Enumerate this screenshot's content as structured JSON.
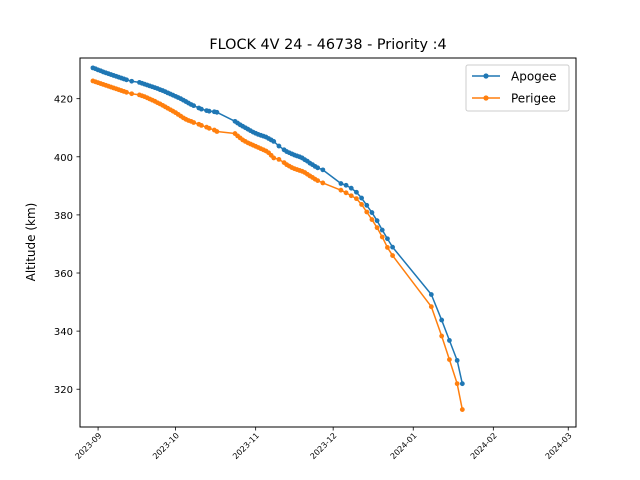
{
  "chart_data": {
    "type": "line",
    "title": "FLOCK 4V 24 - 46738 - Priority :4",
    "xlabel": "",
    "ylabel": "Altitude (km)",
    "xlim": [
      "2023-08-25",
      "2024-03-04"
    ],
    "ylim": [
      307,
      434
    ],
    "x_ticks": [
      "2023-09",
      "2023-10",
      "2023-11",
      "2023-12",
      "2024-01",
      "2024-02",
      "2024-03"
    ],
    "y_ticks": [
      320,
      340,
      360,
      380,
      400,
      420
    ],
    "grid": false,
    "legend_position": "top-right",
    "series": [
      {
        "name": "Apogee",
        "color": "#1f77b4",
        "points": [
          [
            "2023-08-30",
            430.6
          ],
          [
            "2023-08-31",
            430.3
          ],
          [
            "2023-09-01",
            429.9
          ],
          [
            "2023-09-02",
            429.6
          ],
          [
            "2023-09-03",
            429.2
          ],
          [
            "2023-09-04",
            428.9
          ],
          [
            "2023-09-05",
            428.6
          ],
          [
            "2023-09-06",
            428.3
          ],
          [
            "2023-09-07",
            428.0
          ],
          [
            "2023-09-08",
            427.7
          ],
          [
            "2023-09-09",
            427.4
          ],
          [
            "2023-09-10",
            427.1
          ],
          [
            "2023-09-11",
            426.8
          ],
          [
            "2023-09-12",
            426.5
          ],
          [
            "2023-09-14",
            426.0
          ],
          [
            "2023-09-17",
            425.6
          ],
          [
            "2023-09-18",
            425.3
          ],
          [
            "2023-09-19",
            425.0
          ],
          [
            "2023-09-20",
            424.7
          ],
          [
            "2023-09-21",
            424.4
          ],
          [
            "2023-09-22",
            424.1
          ],
          [
            "2023-09-23",
            423.8
          ],
          [
            "2023-09-24",
            423.5
          ],
          [
            "2023-09-25",
            423.1
          ],
          [
            "2023-09-26",
            422.8
          ],
          [
            "2023-09-27",
            422.4
          ],
          [
            "2023-09-28",
            422.0
          ],
          [
            "2023-09-29",
            421.6
          ],
          [
            "2023-09-30",
            421.2
          ],
          [
            "2023-10-01",
            420.8
          ],
          [
            "2023-10-02",
            420.4
          ],
          [
            "2023-10-03",
            420.0
          ],
          [
            "2023-10-04",
            419.5
          ],
          [
            "2023-10-05",
            419.0
          ],
          [
            "2023-10-06",
            418.5
          ],
          [
            "2023-10-07",
            418.0
          ],
          [
            "2023-10-08",
            417.6
          ],
          [
            "2023-10-10",
            416.8
          ],
          [
            "2023-10-11",
            416.4
          ],
          [
            "2023-10-13",
            415.9
          ],
          [
            "2023-10-14",
            415.7
          ],
          [
            "2023-10-16",
            415.5
          ],
          [
            "2023-10-17",
            415.3
          ],
          [
            "2023-10-24",
            412.2
          ],
          [
            "2023-10-25",
            411.6
          ],
          [
            "2023-10-26",
            411.0
          ],
          [
            "2023-10-27",
            410.5
          ],
          [
            "2023-10-28",
            410.0
          ],
          [
            "2023-10-29",
            409.5
          ],
          [
            "2023-10-30",
            409.0
          ],
          [
            "2023-10-31",
            408.5
          ],
          [
            "2023-11-01",
            408.1
          ],
          [
            "2023-11-02",
            407.7
          ],
          [
            "2023-11-03",
            407.4
          ],
          [
            "2023-11-04",
            407.1
          ],
          [
            "2023-11-05",
            406.8
          ],
          [
            "2023-11-06",
            406.3
          ],
          [
            "2023-11-07",
            405.8
          ],
          [
            "2023-11-08",
            405.3
          ],
          [
            "2023-11-10",
            403.7
          ],
          [
            "2023-11-12",
            402.4
          ],
          [
            "2023-11-13",
            401.8
          ],
          [
            "2023-11-14",
            401.4
          ],
          [
            "2023-11-15",
            401.0
          ],
          [
            "2023-11-16",
            400.6
          ],
          [
            "2023-11-17",
            400.3
          ],
          [
            "2023-11-18",
            400.0
          ],
          [
            "2023-11-19",
            399.6
          ],
          [
            "2023-11-20",
            399.0
          ],
          [
            "2023-11-21",
            398.5
          ],
          [
            "2023-11-22",
            397.8
          ],
          [
            "2023-11-23",
            397.3
          ],
          [
            "2023-11-24",
            396.7
          ],
          [
            "2023-11-25",
            396.2
          ],
          [
            "2023-11-27",
            395.5
          ],
          [
            "2023-12-04",
            390.8
          ],
          [
            "2023-12-06",
            390.2
          ],
          [
            "2023-12-08",
            389.2
          ],
          [
            "2023-12-10",
            387.8
          ],
          [
            "2023-12-12",
            385.8
          ],
          [
            "2023-12-14",
            383.3
          ],
          [
            "2023-12-16",
            380.8
          ],
          [
            "2023-12-18",
            378.0
          ],
          [
            "2023-12-20",
            374.8
          ],
          [
            "2023-12-22",
            371.8
          ],
          [
            "2023-12-24",
            368.9
          ],
          [
            "2024-01-08",
            352.6
          ],
          [
            "2024-01-12",
            343.8
          ],
          [
            "2024-01-15",
            336.8
          ],
          [
            "2024-01-18",
            329.9
          ],
          [
            "2024-01-20",
            321.9
          ]
        ]
      },
      {
        "name": "Perigee",
        "color": "#ff7f0e",
        "points": [
          [
            "2023-08-30",
            426.1
          ],
          [
            "2023-08-31",
            425.8
          ],
          [
            "2023-09-01",
            425.5
          ],
          [
            "2023-09-02",
            425.2
          ],
          [
            "2023-09-03",
            424.9
          ],
          [
            "2023-09-04",
            424.6
          ],
          [
            "2023-09-05",
            424.3
          ],
          [
            "2023-09-06",
            424.0
          ],
          [
            "2023-09-07",
            423.7
          ],
          [
            "2023-09-08",
            423.4
          ],
          [
            "2023-09-09",
            423.1
          ],
          [
            "2023-09-10",
            422.8
          ],
          [
            "2023-09-11",
            422.5
          ],
          [
            "2023-09-12",
            422.2
          ],
          [
            "2023-09-14",
            421.7
          ],
          [
            "2023-09-17",
            421.3
          ],
          [
            "2023-09-18",
            421.0
          ],
          [
            "2023-09-19",
            420.7
          ],
          [
            "2023-09-20",
            420.3
          ],
          [
            "2023-09-21",
            419.9
          ],
          [
            "2023-09-22",
            419.5
          ],
          [
            "2023-09-23",
            419.1
          ],
          [
            "2023-09-24",
            418.6
          ],
          [
            "2023-09-25",
            418.2
          ],
          [
            "2023-09-26",
            417.7
          ],
          [
            "2023-09-27",
            417.2
          ],
          [
            "2023-09-28",
            416.7
          ],
          [
            "2023-09-29",
            416.2
          ],
          [
            "2023-09-30",
            415.7
          ],
          [
            "2023-10-01",
            415.2
          ],
          [
            "2023-10-02",
            414.6
          ],
          [
            "2023-10-03",
            414.0
          ],
          [
            "2023-10-04",
            413.4
          ],
          [
            "2023-10-05",
            412.9
          ],
          [
            "2023-10-06",
            412.5
          ],
          [
            "2023-10-07",
            412.2
          ],
          [
            "2023-10-08",
            411.8
          ],
          [
            "2023-10-10",
            411.2
          ],
          [
            "2023-10-11",
            410.8
          ],
          [
            "2023-10-13",
            410.2
          ],
          [
            "2023-10-14",
            409.8
          ],
          [
            "2023-10-16",
            409.2
          ],
          [
            "2023-10-17",
            408.7
          ],
          [
            "2023-10-24",
            408.0
          ],
          [
            "2023-10-25",
            407.2
          ],
          [
            "2023-10-26",
            406.5
          ],
          [
            "2023-10-27",
            405.8
          ],
          [
            "2023-10-28",
            405.3
          ],
          [
            "2023-10-29",
            404.8
          ],
          [
            "2023-10-30",
            404.4
          ],
          [
            "2023-10-31",
            404.0
          ],
          [
            "2023-11-01",
            403.6
          ],
          [
            "2023-11-02",
            403.2
          ],
          [
            "2023-11-03",
            402.8
          ],
          [
            "2023-11-04",
            402.4
          ],
          [
            "2023-11-05",
            402.0
          ],
          [
            "2023-11-06",
            401.4
          ],
          [
            "2023-11-07",
            400.5
          ],
          [
            "2023-11-08",
            399.6
          ],
          [
            "2023-11-10",
            399.1
          ],
          [
            "2023-11-12",
            398.0
          ],
          [
            "2023-11-13",
            397.3
          ],
          [
            "2023-11-14",
            396.8
          ],
          [
            "2023-11-15",
            396.3
          ],
          [
            "2023-11-16",
            395.9
          ],
          [
            "2023-11-17",
            395.6
          ],
          [
            "2023-11-18",
            395.3
          ],
          [
            "2023-11-19",
            395.0
          ],
          [
            "2023-11-20",
            394.6
          ],
          [
            "2023-11-21",
            394.0
          ],
          [
            "2023-11-22",
            393.4
          ],
          [
            "2023-11-23",
            392.9
          ],
          [
            "2023-11-24",
            392.3
          ],
          [
            "2023-11-25",
            391.8
          ],
          [
            "2023-11-27",
            391.0
          ],
          [
            "2023-12-04",
            388.5
          ],
          [
            "2023-12-06",
            387.6
          ],
          [
            "2023-12-08",
            386.6
          ],
          [
            "2023-12-10",
            385.6
          ],
          [
            "2023-12-12",
            383.6
          ],
          [
            "2023-12-14",
            381.0
          ],
          [
            "2023-12-16",
            378.4
          ],
          [
            "2023-12-18",
            375.6
          ],
          [
            "2023-12-20",
            372.4
          ],
          [
            "2023-12-22",
            368.8
          ],
          [
            "2023-12-24",
            366.0
          ],
          [
            "2024-01-08",
            348.4
          ],
          [
            "2024-01-12",
            338.3
          ],
          [
            "2024-01-15",
            330.2
          ],
          [
            "2024-01-18",
            321.9
          ],
          [
            "2024-01-20",
            313.0
          ]
        ]
      }
    ]
  }
}
